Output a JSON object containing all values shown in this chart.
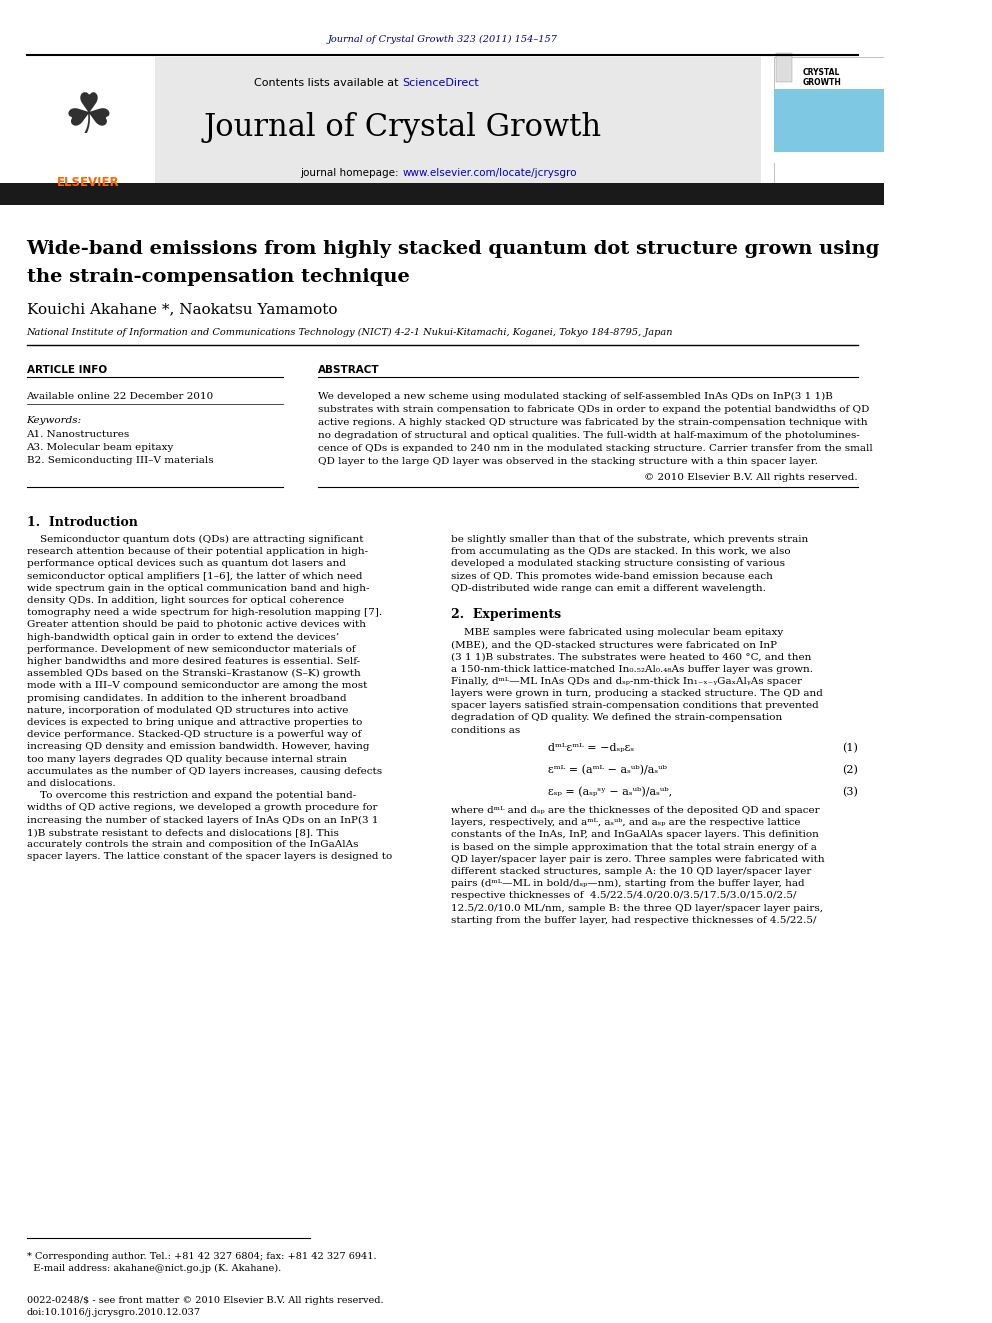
{
  "page_width": 9.92,
  "page_height": 13.23,
  "bg_color": "#ffffff",
  "top_journal_ref": "Journal of Crystal Growth 323 (2011) 154–157",
  "top_journal_ref_color": "#000080",
  "header_bg": "#e8e8e8",
  "header_sciencedirect_color": "#0000cc",
  "journal_name": "Journal of Crystal Growth",
  "journal_url_color": "#0000cc",
  "article_title_line1": "Wide-band emissions from highly stacked quantum dot structure grown using",
  "article_title_line2": "the strain-compensation technique",
  "authors": "Kouichi Akahane *, Naokatsu Yamamoto",
  "affiliation": "National Institute of Information and Communications Technology (NICT) 4-2-1 Nukui-Kitamachi, Koganei, Tokyo 184-8795, Japan",
  "article_info_label": "ARTICLE INFO",
  "abstract_label": "ABSTRACT",
  "available_online": "Available online 22 December 2010",
  "keywords_label": "Keywords:",
  "keywords": [
    "A1. Nanostructures",
    "A3. Molecular beam epitaxy",
    "B2. Semiconducting III–V materials"
  ],
  "copyright": "© 2010 Elsevier B.V. All rights reserved.",
  "section1_title": "1.  Introduction",
  "section2_title": "2.  Experiments",
  "footnote_line1": "* Corresponding author. Tel.: +81 42 327 6804; fax: +81 42 327 6941.",
  "footnote_line2": "  E-mail address: akahane@nict.go.jp (K. Akahane).",
  "footer_line1": "0022-0248/$ - see front matter © 2010 Elsevier B.V. All rights reserved.",
  "footer_line2": "doi:10.1016/j.jcrysgro.2010.12.037",
  "elsevier_color": "#ff6600",
  "dark_bar_color": "#1a1a1a"
}
